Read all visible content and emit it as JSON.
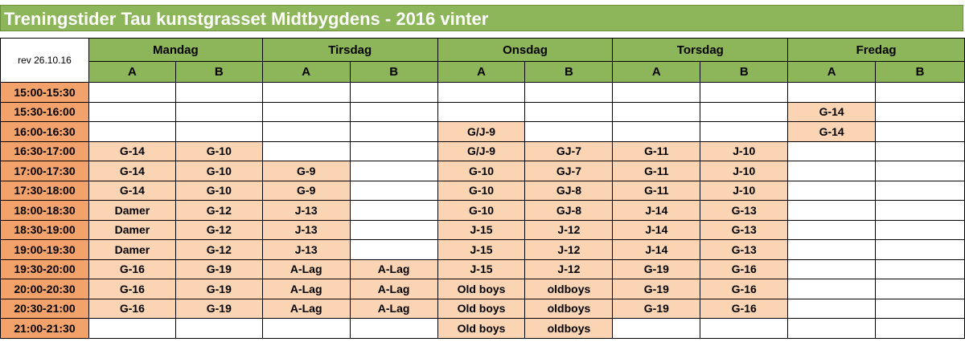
{
  "title": "Treningstider Tau kunstgrasset Midtbygdens - 2016 vinter",
  "revision": "rev 26.10.16",
  "days": [
    "Mandag",
    "Tirsdag",
    "Onsdag",
    "Torsdag",
    "Fredag"
  ],
  "subcolumns": [
    "A",
    "B"
  ],
  "colors": {
    "header_green": "#8db559",
    "time_orange": "#f4a26c",
    "booked_peach": "#fbd4b4"
  },
  "rows": [
    {
      "time": "15:00-15:30",
      "cells": [
        "",
        "",
        "",
        "",
        "",
        "",
        "",
        "",
        "",
        ""
      ]
    },
    {
      "time": "15:30-16:00",
      "cells": [
        "",
        "",
        "",
        "",
        "",
        "",
        "",
        "",
        "G-14",
        ""
      ]
    },
    {
      "time": "16:00-16:30",
      "cells": [
        "",
        "",
        "",
        "",
        "G/J-9",
        "",
        "",
        "",
        "G-14",
        ""
      ]
    },
    {
      "time": "16:30-17:00",
      "cells": [
        "G-14",
        "G-10",
        "",
        "",
        "G/J-9",
        "GJ-7",
        "G-11",
        "J-10",
        "",
        ""
      ]
    },
    {
      "time": "17:00-17:30",
      "cells": [
        "G-14",
        "G-10",
        "G-9",
        "",
        "G-10",
        "GJ-7",
        "G-11",
        "J-10",
        "",
        ""
      ]
    },
    {
      "time": "17:30-18:00",
      "cells": [
        "G-14",
        "G-10",
        "G-9",
        "",
        "G-10",
        "GJ-8",
        "G-11",
        "J-10",
        "",
        ""
      ]
    },
    {
      "time": "18:00-18:30",
      "cells": [
        "Damer",
        "G-12",
        "J-13",
        "",
        "G-10",
        "GJ-8",
        "J-14",
        "G-13",
        "",
        ""
      ]
    },
    {
      "time": "18:30-19:00",
      "cells": [
        "Damer",
        "G-12",
        "J-13",
        "",
        "J-15",
        "J-12",
        "J-14",
        "G-13",
        "",
        ""
      ]
    },
    {
      "time": "19:00-19:30",
      "cells": [
        "Damer",
        "G-12",
        "J-13",
        "",
        "J-15",
        "J-12",
        "J-14",
        "G-13",
        "",
        ""
      ]
    },
    {
      "time": "19:30-20:00",
      "cells": [
        "G-16",
        "G-19",
        "A-Lag",
        "A-Lag",
        "J-15",
        "J-12",
        "G-19",
        "G-16",
        "",
        ""
      ]
    },
    {
      "time": "20:00-20:30",
      "cells": [
        "G-16",
        "G-19",
        "A-Lag",
        "A-Lag",
        "Old boys",
        "oldboys",
        "G-19",
        "G-16",
        "",
        ""
      ]
    },
    {
      "time": "20:30-21:00",
      "cells": [
        "G-16",
        "G-19",
        "A-Lag",
        "A-Lag",
        "Old boys",
        "oldboys",
        "G-19",
        "G-16",
        "",
        ""
      ]
    },
    {
      "time": "21:00-21:30",
      "cells": [
        "",
        "",
        "",
        "",
        "Old boys",
        "oldboys",
        "",
        "",
        "",
        ""
      ]
    }
  ]
}
